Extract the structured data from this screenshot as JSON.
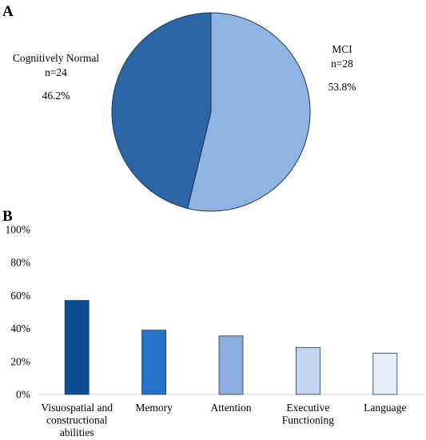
{
  "panels": {
    "a_label": "A",
    "b_label": "B"
  },
  "chart_data": [
    {
      "type": "pie",
      "panel": "A",
      "slices": [
        {
          "name": "MCI",
          "count_label": "n=28",
          "percent_label": "53.8%",
          "value": 53.8,
          "color": "#8eb4e3"
        },
        {
          "name": "Cognitively Normal",
          "count_label": "n=24",
          "percent_label": "46.2%",
          "value": 46.2,
          "color": "#2b65a5"
        }
      ],
      "start_angle": "12 o'clock",
      "direction": "clockwise"
    },
    {
      "type": "bar",
      "panel": "B",
      "categories": [
        [
          "Visuospatial and",
          "constructional",
          "abilities"
        ],
        [
          "Memory"
        ],
        [
          "Attention"
        ],
        [
          "Executive",
          "Functioning"
        ],
        [
          "Language"
        ]
      ],
      "values": [
        57,
        39,
        35.5,
        28.5,
        25
      ],
      "colors": [
        "#0e4c92",
        "#2673cc",
        "#8aafe0",
        "#c3d6ef",
        "#e6eefa"
      ],
      "ylim": [
        0,
        100
      ],
      "yticks": [
        0,
        20,
        40,
        60,
        80,
        100
      ],
      "ytick_labels": [
        "0%",
        "20%",
        "40%",
        "60%",
        "80%",
        "100%"
      ],
      "grid": false,
      "xlabel": "",
      "ylabel": ""
    }
  ]
}
